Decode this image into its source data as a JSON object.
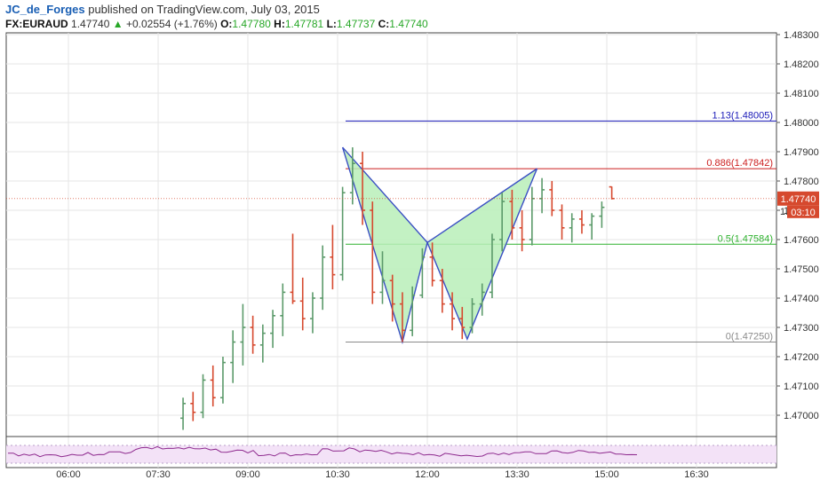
{
  "header": {
    "author": "JC_de_Forges",
    "published_text": "published on TradingView.com, July 03, 2015"
  },
  "quote": {
    "symbol": "FX:EURAUD",
    "last": "1.47740",
    "change": "+0.02554 (+1.76%)",
    "o_label": "O:",
    "o_value": "1.47780",
    "h_label": "H:",
    "h_value": "1.47781",
    "l_label": "L:",
    "l_value": "1.47737",
    "c_label": "C:",
    "c_value": "1.47740"
  },
  "badges": {
    "last_price": "1.47740",
    "countdown": "03:10",
    "partial_left": "1."
  },
  "colors": {
    "up": "#5b9a6a",
    "down": "#d6492e",
    "pattern_line": "#3a4fc4",
    "pattern_fill": "#b8efb8",
    "fib_113": "#1a1ab8",
    "fib_0886": "#cc1f1f",
    "fib_05": "#2fb22f",
    "fib_0": "#8a8a8a",
    "rsi": "#8e2a8e",
    "rsi_fill": "#f3e2f7"
  },
  "chart_data": {
    "type": "ohlc",
    "symbol": "FX:EURAUD",
    "y_ticks": [
      "1.48300",
      "1.48200",
      "1.48100",
      "1.48000",
      "1.47900",
      "1.47800",
      "1.47700",
      "1.47600",
      "1.47500",
      "1.47400",
      "1.47300",
      "1.47200",
      "1.47100",
      "1.47000"
    ],
    "x_ticks": [
      "06:00",
      "07:30",
      "09:00",
      "10:30",
      "12:00",
      "13:30",
      "15:00",
      "16:30"
    ],
    "fib_levels": [
      {
        "label": "1.13(1.48005)",
        "price": 1.48005,
        "color_key": "fib_113"
      },
      {
        "label": "0.886(1.47842)",
        "price": 1.47842,
        "color_key": "fib_0886"
      },
      {
        "label": "0.5(1.47584)",
        "price": 1.47584,
        "color_key": "fib_05"
      },
      {
        "label": "0(1.47250)",
        "price": 1.4725,
        "color_key": "fib_0"
      }
    ],
    "harmonic_pattern": {
      "points": [
        {
          "time": "10:35",
          "price": 1.47915
        },
        {
          "time": "11:35",
          "price": 1.4725
        },
        {
          "time": "12:00",
          "price": 1.4759
        },
        {
          "time": "12:40",
          "price": 1.4726
        },
        {
          "time": "13:50",
          "price": 1.47842
        }
      ]
    },
    "bars": [
      {
        "time": "07:35",
        "o": 1.4694,
        "h": 1.4696,
        "l": 1.469,
        "c": 1.4695
      },
      {
        "time": "07:45",
        "o": 1.4695,
        "h": 1.4701,
        "l": 1.4691,
        "c": 1.4699
      },
      {
        "time": "07:55",
        "o": 1.4699,
        "h": 1.4706,
        "l": 1.4695,
        "c": 1.4704
      },
      {
        "time": "08:05",
        "o": 1.4704,
        "h": 1.4708,
        "l": 1.4698,
        "c": 1.4701
      },
      {
        "time": "08:15",
        "o": 1.4701,
        "h": 1.4714,
        "l": 1.4699,
        "c": 1.4712
      },
      {
        "time": "08:25",
        "o": 1.4712,
        "h": 1.4717,
        "l": 1.4703,
        "c": 1.4706
      },
      {
        "time": "08:35",
        "o": 1.4706,
        "h": 1.472,
        "l": 1.4704,
        "c": 1.4718
      },
      {
        "time": "08:45",
        "o": 1.4718,
        "h": 1.4729,
        "l": 1.4711,
        "c": 1.4725
      },
      {
        "time": "08:55",
        "o": 1.4725,
        "h": 1.4738,
        "l": 1.4717,
        "c": 1.473
      },
      {
        "time": "09:05",
        "o": 1.473,
        "h": 1.4734,
        "l": 1.4721,
        "c": 1.4724
      },
      {
        "time": "09:15",
        "o": 1.4724,
        "h": 1.4731,
        "l": 1.4718,
        "c": 1.4728
      },
      {
        "time": "09:25",
        "o": 1.4728,
        "h": 1.4736,
        "l": 1.4723,
        "c": 1.4734
      },
      {
        "time": "09:35",
        "o": 1.4734,
        "h": 1.4745,
        "l": 1.4727,
        "c": 1.4742
      },
      {
        "time": "09:45",
        "o": 1.4742,
        "h": 1.4762,
        "l": 1.4738,
        "c": 1.4739
      },
      {
        "time": "09:55",
        "o": 1.4739,
        "h": 1.4747,
        "l": 1.4729,
        "c": 1.4733
      },
      {
        "time": "10:05",
        "o": 1.4733,
        "h": 1.4742,
        "l": 1.4728,
        "c": 1.474
      },
      {
        "time": "10:15",
        "o": 1.474,
        "h": 1.4758,
        "l": 1.4736,
        "c": 1.4754
      },
      {
        "time": "10:25",
        "o": 1.4754,
        "h": 1.4765,
        "l": 1.4743,
        "c": 1.4748
      },
      {
        "time": "10:35",
        "o": 1.4748,
        "h": 1.4778,
        "l": 1.4746,
        "c": 1.4776
      },
      {
        "time": "10:45",
        "o": 1.4776,
        "h": 1.47915,
        "l": 1.4772,
        "c": 1.4786
      },
      {
        "time": "10:55",
        "o": 1.4786,
        "h": 1.479,
        "l": 1.4765,
        "c": 1.477
      },
      {
        "time": "11:05",
        "o": 1.477,
        "h": 1.4773,
        "l": 1.4738,
        "c": 1.4742
      },
      {
        "time": "11:15",
        "o": 1.4742,
        "h": 1.4756,
        "l": 1.4738,
        "c": 1.4746
      },
      {
        "time": "11:25",
        "o": 1.4746,
        "h": 1.4748,
        "l": 1.4732,
        "c": 1.4738
      },
      {
        "time": "11:35",
        "o": 1.4738,
        "h": 1.4742,
        "l": 1.4725,
        "c": 1.4729
      },
      {
        "time": "11:45",
        "o": 1.4729,
        "h": 1.4744,
        "l": 1.4727,
        "c": 1.4741
      },
      {
        "time": "11:55",
        "o": 1.4741,
        "h": 1.4757,
        "l": 1.474,
        "c": 1.4754
      },
      {
        "time": "12:05",
        "o": 1.4754,
        "h": 1.4759,
        "l": 1.4744,
        "c": 1.4746
      },
      {
        "time": "12:15",
        "o": 1.4746,
        "h": 1.475,
        "l": 1.4735,
        "c": 1.4738
      },
      {
        "time": "12:25",
        "o": 1.4738,
        "h": 1.4742,
        "l": 1.4729,
        "c": 1.4733
      },
      {
        "time": "12:35",
        "o": 1.4733,
        "h": 1.4737,
        "l": 1.4726,
        "c": 1.473
      },
      {
        "time": "12:45",
        "o": 1.473,
        "h": 1.474,
        "l": 1.4728,
        "c": 1.4738
      },
      {
        "time": "12:55",
        "o": 1.4738,
        "h": 1.4745,
        "l": 1.4734,
        "c": 1.4742
      },
      {
        "time": "13:05",
        "o": 1.4742,
        "h": 1.4762,
        "l": 1.474,
        "c": 1.476
      },
      {
        "time": "13:15",
        "o": 1.476,
        "h": 1.4776,
        "l": 1.4756,
        "c": 1.4773
      },
      {
        "time": "13:25",
        "o": 1.4773,
        "h": 1.4777,
        "l": 1.476,
        "c": 1.4764
      },
      {
        "time": "13:35",
        "o": 1.4764,
        "h": 1.477,
        "l": 1.4756,
        "c": 1.476
      },
      {
        "time": "13:45",
        "o": 1.476,
        "h": 1.4778,
        "l": 1.4758,
        "c": 1.4774
      },
      {
        "time": "13:55",
        "o": 1.4774,
        "h": 1.4781,
        "l": 1.4769,
        "c": 1.4777
      },
      {
        "time": "14:05",
        "o": 1.4777,
        "h": 1.478,
        "l": 1.4768,
        "c": 1.477
      },
      {
        "time": "14:15",
        "o": 1.477,
        "h": 1.4772,
        "l": 1.476,
        "c": 1.4764
      },
      {
        "time": "14:25",
        "o": 1.4764,
        "h": 1.4769,
        "l": 1.4759,
        "c": 1.4767
      },
      {
        "time": "14:35",
        "o": 1.4767,
        "h": 1.477,
        "l": 1.4762,
        "c": 1.4765
      },
      {
        "time": "14:45",
        "o": 1.4765,
        "h": 1.4769,
        "l": 1.476,
        "c": 1.4768
      },
      {
        "time": "14:55",
        "o": 1.4768,
        "h": 1.4773,
        "l": 1.4764,
        "c": 1.4771
      },
      {
        "time": "15:05",
        "o": 1.4778,
        "h": 1.47781,
        "l": 1.47737,
        "c": 1.4774
      }
    ]
  }
}
